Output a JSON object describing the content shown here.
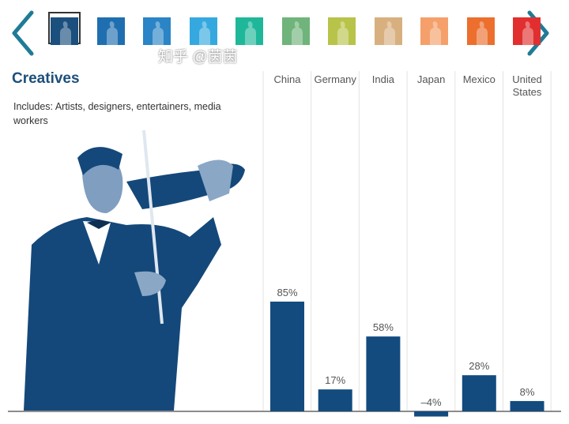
{
  "nav": {
    "prev": "chevron-left-icon",
    "next": "chevron-right-icon",
    "thumbnail_colors": [
      "#1b4f7e",
      "#1f6fb0",
      "#2a84c6",
      "#35a9df",
      "#1fb79a",
      "#6fb47a",
      "#b8c34a",
      "#d8b07f",
      "#f5a06b",
      "#ec6f2e",
      "#e12f2f"
    ],
    "selected_index": 0,
    "accent": "#1f7b96"
  },
  "title": "Creatives",
  "subtitle": "Includes: Artists, designers, entertainers, media workers",
  "watermark": "知乎 @茵茵",
  "chart_data": {
    "type": "bar",
    "categories": [
      "China",
      "Germany",
      "India",
      "Japan",
      "Mexico",
      "United States"
    ],
    "values": [
      85,
      17,
      58,
      -4,
      28,
      8
    ],
    "data_labels": [
      "85%",
      "17%",
      "58%",
      "–4%",
      "28%",
      "8%"
    ],
    "bar_color": "#134b7f",
    "grid": "vertical separators"
  }
}
